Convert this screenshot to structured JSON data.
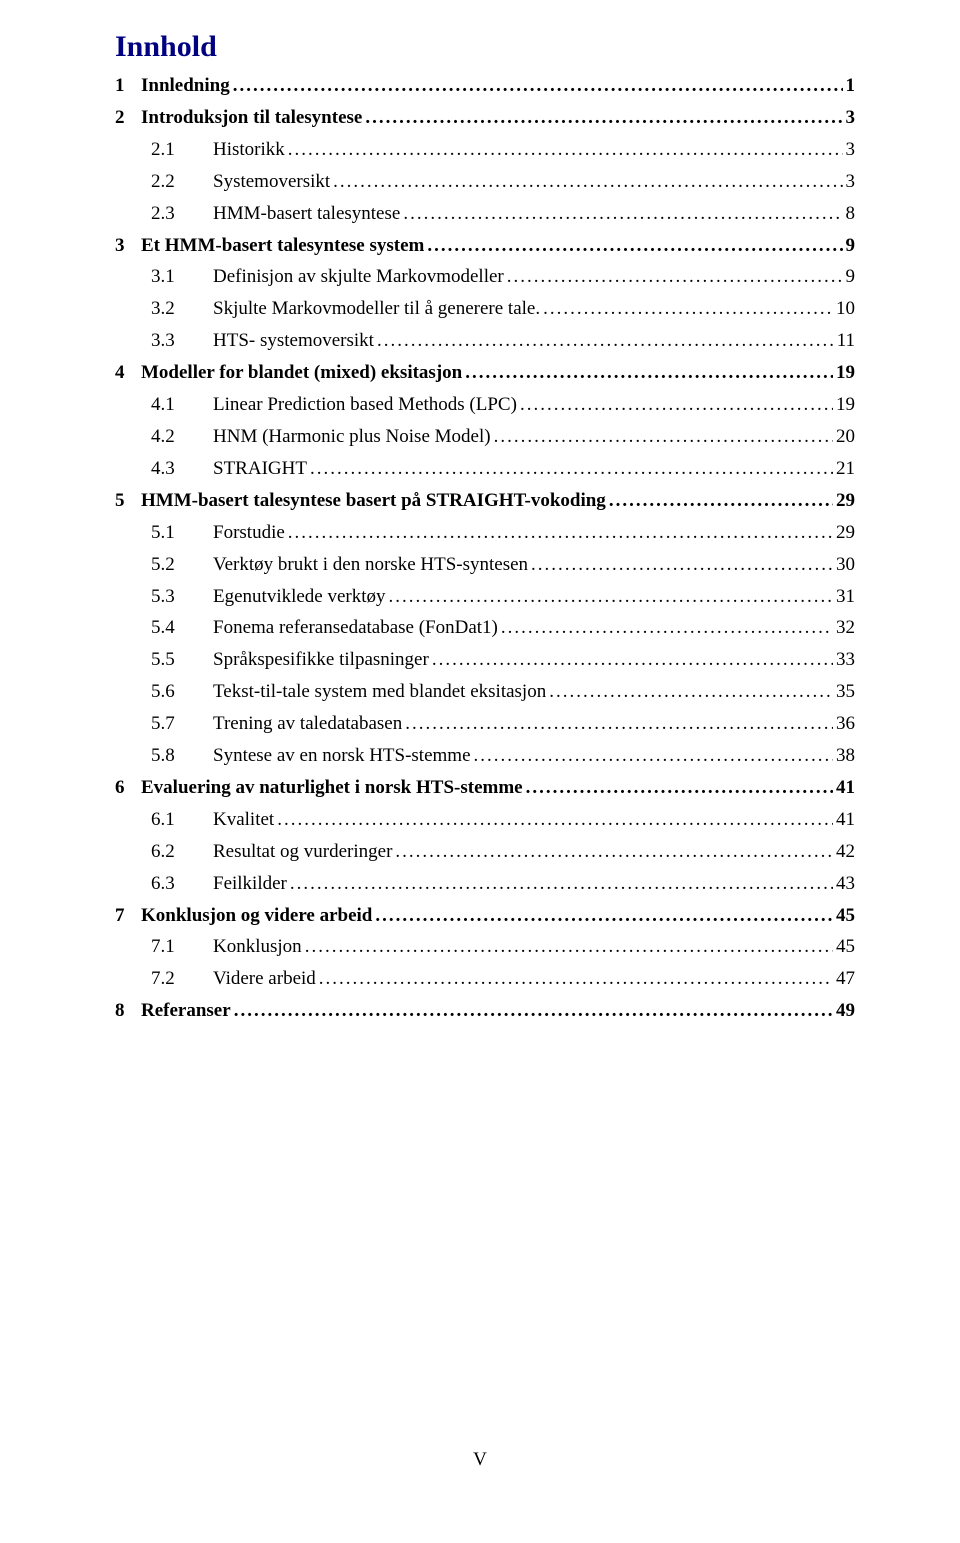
{
  "title": "Innhold",
  "footer": "V",
  "entries": [
    {
      "level": 1,
      "num": "1",
      "label": "Innledning",
      "page": "1",
      "bold": true
    },
    {
      "level": 1,
      "num": "2",
      "label": "Introduksjon til talesyntese",
      "page": "3",
      "bold": true
    },
    {
      "level": 2,
      "num": "2.1",
      "label": "Historikk",
      "page": "3",
      "bold": false
    },
    {
      "level": 2,
      "num": "2.2",
      "label": "Systemoversikt",
      "page": "3",
      "bold": false
    },
    {
      "level": 2,
      "num": "2.3",
      "label": "HMM-basert talesyntese",
      "page": "8",
      "bold": false
    },
    {
      "level": 1,
      "num": "3",
      "label": "Et HMM-basert talesyntese system",
      "page": "9",
      "bold": true
    },
    {
      "level": 2,
      "num": "3.1",
      "label": "Definisjon av skjulte Markovmodeller",
      "page": "9",
      "bold": false
    },
    {
      "level": 2,
      "num": "3.2",
      "label": "Skjulte Markovmodeller til å generere tale.",
      "page": "10",
      "bold": false
    },
    {
      "level": 2,
      "num": "3.3",
      "label": "HTS- systemoversikt",
      "page": "11",
      "bold": false
    },
    {
      "level": 1,
      "num": "4",
      "label": "Modeller for blandet (mixed) eksitasjon",
      "page": "19",
      "bold": true
    },
    {
      "level": 2,
      "num": "4.1",
      "label": "Linear Prediction based Methods (LPC)",
      "page": "19",
      "bold": false
    },
    {
      "level": 2,
      "num": "4.2",
      "label": "HNM (Harmonic plus Noise Model)",
      "page": "20",
      "bold": false
    },
    {
      "level": 2,
      "num": "4.3",
      "label": "STRAIGHT",
      "page": "21",
      "bold": false
    },
    {
      "level": 1,
      "num": "5",
      "label": "HMM-basert talesyntese basert på STRAIGHT-vokoding",
      "page": "29",
      "bold": true
    },
    {
      "level": 2,
      "num": "5.1",
      "label": "Forstudie",
      "page": "29",
      "bold": false
    },
    {
      "level": 2,
      "num": "5.2",
      "label": "Verktøy brukt i den norske HTS-syntesen",
      "page": "30",
      "bold": false
    },
    {
      "level": 2,
      "num": "5.3",
      "label": "Egenutviklede verktøy",
      "page": "31",
      "bold": false
    },
    {
      "level": 2,
      "num": "5.4",
      "label": "Fonema referansedatabase (FonDat1)",
      "page": "32",
      "bold": false
    },
    {
      "level": 2,
      "num": "5.5",
      "label": "Språkspesifikke tilpasninger",
      "page": "33",
      "bold": false
    },
    {
      "level": 2,
      "num": "5.6",
      "label": "Tekst-til-tale system med blandet eksitasjon",
      "page": "35",
      "bold": false
    },
    {
      "level": 2,
      "num": "5.7",
      "label": "Trening av taledatabasen",
      "page": "36",
      "bold": false
    },
    {
      "level": 2,
      "num": "5.8",
      "label": "Syntese av en norsk HTS-stemme",
      "page": "38",
      "bold": false
    },
    {
      "level": 1,
      "num": "6",
      "label": "Evaluering av naturlighet i norsk HTS-stemme",
      "page": "41",
      "bold": true
    },
    {
      "level": 2,
      "num": "6.1",
      "label": "Kvalitet",
      "page": "41",
      "bold": false
    },
    {
      "level": 2,
      "num": "6.2",
      "label": "Resultat og vurderinger",
      "page": "42",
      "bold": false
    },
    {
      "level": 2,
      "num": "6.3",
      "label": "Feilkilder",
      "page": "43",
      "bold": false
    },
    {
      "level": 1,
      "num": "7",
      "label": "Konklusjon og videre arbeid",
      "page": "45",
      "bold": true
    },
    {
      "level": 2,
      "num": "7.1",
      "label": "Konklusjon",
      "page": "45",
      "bold": false
    },
    {
      "level": 2,
      "num": "7.2",
      "label": "Videre arbeid",
      "page": "47",
      "bold": false
    },
    {
      "level": 1,
      "num": "8",
      "label": "Referanser",
      "page": "49",
      "bold": true
    }
  ]
}
